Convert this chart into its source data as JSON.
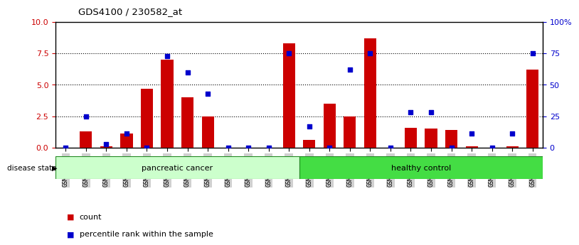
{
  "title": "GDS4100 / 230582_at",
  "samples": [
    "GSM356796",
    "GSM356797",
    "GSM356798",
    "GSM356799",
    "GSM356800",
    "GSM356801",
    "GSM356802",
    "GSM356803",
    "GSM356804",
    "GSM356805",
    "GSM356806",
    "GSM356807",
    "GSM356808",
    "GSM356809",
    "GSM356810",
    "GSM356811",
    "GSM356812",
    "GSM356813",
    "GSM356814",
    "GSM356815",
    "GSM356816",
    "GSM356817",
    "GSM356818",
    "GSM356819"
  ],
  "count_values": [
    0.0,
    1.3,
    0.1,
    1.1,
    4.7,
    7.0,
    4.0,
    2.5,
    0.0,
    0.0,
    0.0,
    8.3,
    0.6,
    3.5,
    2.5,
    8.7,
    0.0,
    1.6,
    1.5,
    1.4,
    0.1,
    0.0,
    0.1,
    6.2
  ],
  "percentile_values": [
    0.0,
    25.0,
    3.0,
    11.0,
    0.0,
    73.0,
    60.0,
    43.0,
    0.0,
    0.0,
    0.0,
    75.0,
    17.0,
    0.0,
    62.0,
    75.0,
    0.0,
    28.0,
    28.0,
    0.0,
    11.0,
    0.0,
    11.0,
    75.0
  ],
  "group_labels": [
    "pancreatic cancer",
    "healthy control"
  ],
  "group_split": 12,
  "bar_color": "#cc0000",
  "scatter_color": "#0000cc",
  "left_ylim": [
    0,
    10
  ],
  "right_ylim": [
    0,
    100
  ],
  "left_yticks": [
    0,
    2.5,
    5.0,
    7.5,
    10
  ],
  "right_yticks": [
    0,
    25,
    50,
    75,
    100
  ],
  "right_yticklabels": [
    "0",
    "25",
    "50",
    "75",
    "100%"
  ],
  "tick_bg_color": "#d0d0d0",
  "pancreatic_color": "#ccffcc",
  "healthy_color": "#44dd44",
  "group_edge_color": "#228822",
  "legend_count_label": "count",
  "legend_pct_label": "percentile rank within the sample"
}
